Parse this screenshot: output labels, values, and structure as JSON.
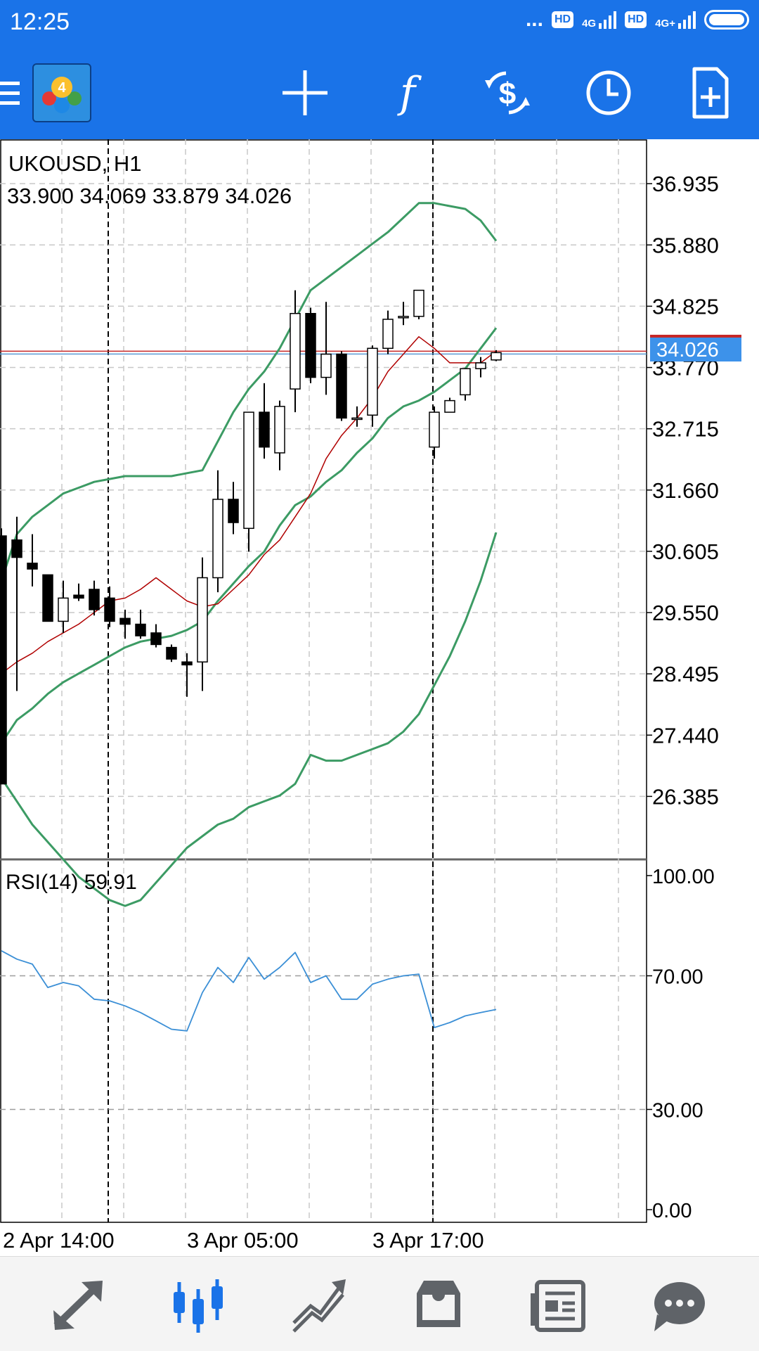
{
  "status_bar": {
    "time": "12:25",
    "dots": "...",
    "sim1_badge": "HD",
    "sim1_network": "4G",
    "sim2_badge": "HD",
    "sim2_network": "4G+"
  },
  "toolbar": {
    "menu_icon": "hamburger-menu-icon",
    "logo_icon": "metatrader4-logo-icon",
    "logo_text": "4",
    "actions": [
      "crosshair-icon",
      "indicators-f-icon",
      "trade-dollar-icon",
      "timeframe-clock-icon",
      "new-order-document-icon"
    ]
  },
  "chart": {
    "symbol_label": "UKOUSD, H1",
    "ohlc_label": "33.900 34.069 33.879 34.026",
    "current_price": "34.026",
    "price_axis": [
      "36.935",
      "35.880",
      "34.825",
      "33.770",
      "32.715",
      "31.660",
      "30.605",
      "29.550",
      "28.495",
      "27.440",
      "26.385"
    ],
    "time_axis": [
      "2 Apr 14:00",
      "3 Apr 05:00",
      "3 Apr 17:00"
    ],
    "rsi_label": "RSI(14) 59.91",
    "rsi_axis": [
      "100.00",
      "70.00",
      "30.00",
      "0.00"
    ],
    "colors": {
      "bull": "#ffffff",
      "bear": "#000000",
      "bollinger": "#3c9b64",
      "moving_average": "#b00000",
      "rsi": "#3b8fd6",
      "price_highlight": "#3d92ea",
      "grid": "#c8c8c8"
    }
  },
  "chart_data": {
    "type": "candlestick",
    "symbol": "UKOUSD",
    "timeframe": "H1",
    "ylim": [
      25.3,
      37.7
    ],
    "last_price": 34.026,
    "candles": [
      {
        "o": 30.87,
        "h": 31.0,
        "l": 26.6,
        "c": 26.6
      },
      {
        "o": 30.8,
        "h": 31.2,
        "l": 28.2,
        "c": 30.5
      },
      {
        "o": 30.4,
        "h": 30.9,
        "l": 30.0,
        "c": 30.3
      },
      {
        "o": 30.2,
        "h": 30.2,
        "l": 29.4,
        "c": 29.4
      },
      {
        "o": 29.4,
        "h": 30.1,
        "l": 29.2,
        "c": 29.8
      },
      {
        "o": 29.85,
        "h": 30.05,
        "l": 29.75,
        "c": 29.8
      },
      {
        "o": 29.95,
        "h": 30.1,
        "l": 29.5,
        "c": 29.6
      },
      {
        "o": 29.8,
        "h": 30.0,
        "l": 29.3,
        "c": 29.4
      },
      {
        "o": 29.45,
        "h": 29.6,
        "l": 29.1,
        "c": 29.35
      },
      {
        "o": 29.35,
        "h": 29.6,
        "l": 29.1,
        "c": 29.15
      },
      {
        "o": 29.2,
        "h": 29.35,
        "l": 28.95,
        "c": 29.0
      },
      {
        "o": 28.95,
        "h": 29.0,
        "l": 28.7,
        "c": 28.75
      },
      {
        "o": 28.7,
        "h": 28.85,
        "l": 28.1,
        "c": 28.65
      },
      {
        "o": 28.7,
        "h": 30.5,
        "l": 28.2,
        "c": 30.15
      },
      {
        "o": 30.15,
        "h": 32.0,
        "l": 29.9,
        "c": 31.5
      },
      {
        "o": 31.5,
        "h": 31.8,
        "l": 30.9,
        "c": 31.1
      },
      {
        "o": 31.0,
        "h": 33.0,
        "l": 30.6,
        "c": 33.0
      },
      {
        "o": 33.0,
        "h": 33.5,
        "l": 32.2,
        "c": 32.4
      },
      {
        "o": 32.3,
        "h": 33.2,
        "l": 32.0,
        "c": 33.1
      },
      {
        "o": 33.4,
        "h": 35.1,
        "l": 33.0,
        "c": 34.7
      },
      {
        "o": 34.7,
        "h": 34.8,
        "l": 33.5,
        "c": 33.6
      },
      {
        "o": 33.6,
        "h": 34.9,
        "l": 33.3,
        "c": 34.0
      },
      {
        "o": 34.0,
        "h": 34.05,
        "l": 32.85,
        "c": 32.9
      },
      {
        "o": 32.9,
        "h": 33.1,
        "l": 32.75,
        "c": 32.9
      },
      {
        "o": 32.95,
        "h": 34.15,
        "l": 32.75,
        "c": 34.1
      },
      {
        "o": 34.1,
        "h": 34.75,
        "l": 34.0,
        "c": 34.6
      },
      {
        "o": 34.65,
        "h": 34.9,
        "l": 34.5,
        "c": 34.65
      },
      {
        "o": 34.65,
        "h": 35.05,
        "l": 34.6,
        "c": 35.1
      },
      {
        "o": 32.4,
        "h": 33.1,
        "l": 32.2,
        "c": 33.0
      },
      {
        "o": 33.0,
        "h": 33.25,
        "l": 33.0,
        "c": 33.2
      },
      {
        "o": 33.3,
        "h": 33.75,
        "l": 33.2,
        "c": 33.75
      },
      {
        "o": 33.75,
        "h": 33.95,
        "l": 33.6,
        "c": 33.85
      },
      {
        "o": 33.9,
        "h": 34.069,
        "l": 33.879,
        "c": 34.026
      }
    ],
    "bollinger_upper": [
      30.1,
      30.9,
      31.2,
      31.4,
      31.6,
      31.7,
      31.8,
      31.85,
      31.9,
      31.9,
      31.9,
      31.9,
      31.95,
      32.0,
      32.5,
      33.0,
      33.4,
      33.7,
      34.1,
      34.6,
      35.1,
      35.3,
      35.5,
      35.7,
      35.9,
      36.1,
      36.35,
      36.6,
      36.6,
      36.55,
      36.5,
      36.3,
      35.95
    ],
    "bollinger_lower": [
      26.7,
      26.3,
      25.9,
      25.6,
      25.3,
      25.0,
      24.8,
      24.6,
      24.5,
      24.6,
      24.9,
      25.2,
      25.5,
      25.7,
      25.9,
      26.0,
      26.2,
      26.3,
      26.4,
      26.6,
      27.1,
      27.0,
      27.0,
      27.1,
      27.2,
      27.3,
      27.5,
      27.8,
      28.3,
      28.8,
      29.4,
      30.1,
      30.93
    ],
    "moving_average": [
      28.5,
      28.7,
      28.85,
      29.05,
      29.2,
      29.35,
      29.55,
      29.75,
      29.8,
      29.95,
      30.15,
      29.95,
      29.75,
      29.65,
      29.7,
      29.95,
      30.2,
      30.55,
      30.8,
      31.2,
      31.6,
      32.2,
      32.6,
      32.9,
      33.25,
      33.7,
      34.0,
      34.3,
      34.1,
      33.85,
      33.85,
      33.85,
      34.05
    ],
    "bollinger_middle": [
      27.3,
      27.7,
      27.9,
      28.15,
      28.35,
      28.5,
      28.65,
      28.8,
      28.95,
      29.05,
      29.1,
      29.15,
      29.25,
      29.4,
      29.75,
      30.05,
      30.35,
      30.6,
      31.05,
      31.4,
      31.55,
      31.8,
      32.0,
      32.3,
      32.55,
      32.9,
      33.1,
      33.2,
      33.35,
      33.55,
      33.75,
      34.1,
      34.45
    ],
    "rsi": [
      77.5,
      75.0,
      73.5,
      66.5,
      68.0,
      67.0,
      63.0,
      62.5,
      61.0,
      59.0,
      56.5,
      54.0,
      53.5,
      65.0,
      72.5,
      68.0,
      75.5,
      69.0,
      72.5,
      77.0,
      68.0,
      70.0,
      63.0,
      63.0,
      67.5,
      69.0,
      70.0,
      70.5,
      54.5,
      56.0,
      58.0,
      59.0,
      59.91
    ],
    "rsi_ylim": [
      0,
      100
    ],
    "rsi_levels": [
      30,
      70
    ]
  },
  "nav": {
    "items": [
      "quotes-arrows-icon",
      "chart-candles-icon",
      "trade-chart-icon",
      "history-inbox-icon",
      "news-icon",
      "chat-bubble-icon"
    ],
    "active": "chart-candles-icon"
  }
}
